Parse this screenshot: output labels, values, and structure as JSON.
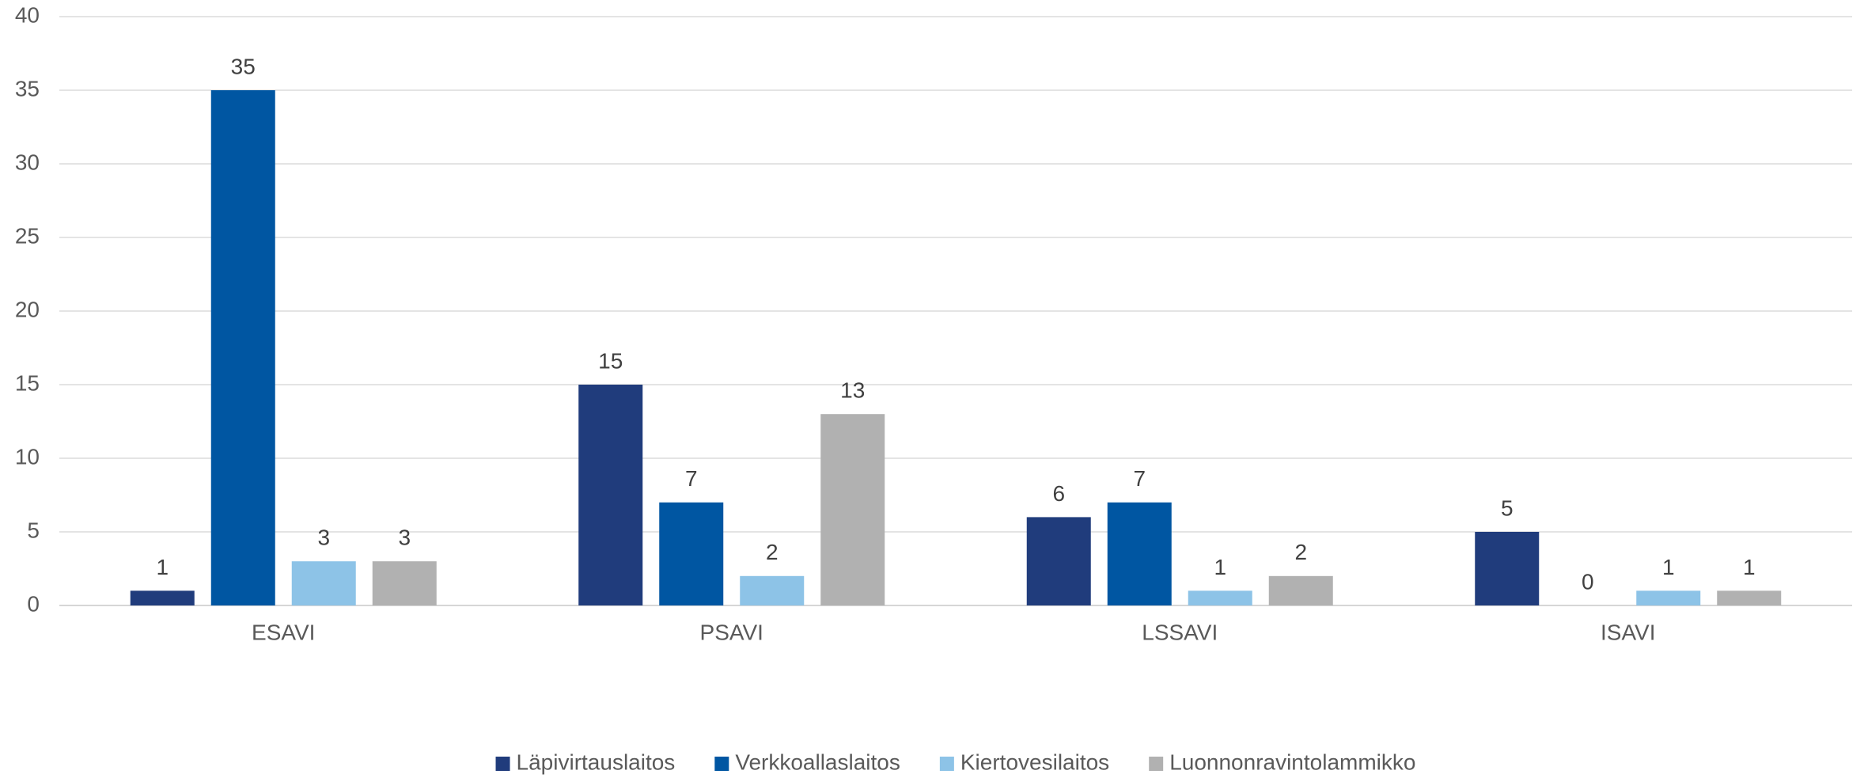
{
  "chart_data": {
    "type": "bar",
    "categories": [
      "ESAVI",
      "PSAVI",
      "LSSAVI",
      "ISAVI"
    ],
    "series": [
      {
        "name": "Läpivirtauslaitos",
        "color": "#203c7c",
        "values": [
          1,
          15,
          6,
          5
        ]
      },
      {
        "name": "Verkkoallaslaitos",
        "color": "#0056a2",
        "values": [
          35,
          7,
          7,
          0
        ]
      },
      {
        "name": "Kiertovesilaitos",
        "color": "#8dc3e7",
        "values": [
          3,
          2,
          1,
          1
        ]
      },
      {
        "name": "Luonnonravintolammikko",
        "color": "#b1b1b1",
        "values": [
          3,
          13,
          2,
          1
        ]
      }
    ],
    "ylim": [
      0,
      40
    ],
    "yticks": [
      0,
      5,
      10,
      15,
      20,
      25,
      30,
      35,
      40
    ],
    "grid": true,
    "legend": "bottom"
  }
}
